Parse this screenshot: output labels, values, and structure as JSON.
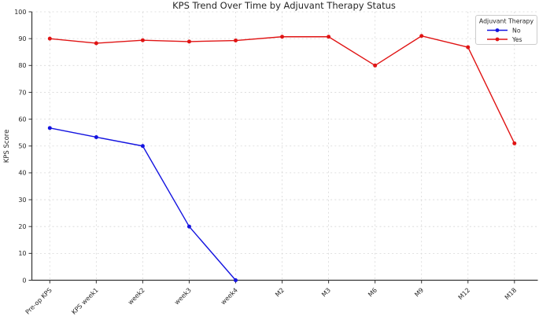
{
  "chart_data": {
    "type": "line",
    "title": "KPS Trend Over Time by Adjuvant Therapy Status",
    "xlabel": "",
    "ylabel": "KPS Score",
    "categories": [
      "Pre-op KPS",
      "KPS week1",
      "week2",
      "week3",
      "week4",
      "M2",
      "M3",
      "M6",
      "M9",
      "M12",
      "M18"
    ],
    "series": [
      {
        "name": "No",
        "color": "#1414e0",
        "values": [
          56.7,
          53.3,
          50,
          20,
          0,
          null,
          null,
          null,
          null,
          null,
          null
        ]
      },
      {
        "name": "Yes",
        "color": "#e01414",
        "values": [
          90,
          88.3,
          89.4,
          88.9,
          89.3,
          90.7,
          90.7,
          80,
          91,
          86.8,
          51
        ]
      }
    ],
    "legend": {
      "title": "Adjuvant Therapy",
      "position": "upper right"
    },
    "ylim": [
      0,
      100
    ],
    "yticks": [
      0,
      10,
      20,
      30,
      40,
      50,
      60,
      70,
      80,
      90,
      100
    ],
    "grid": "dashed light-gray, horizontal and vertical",
    "colors": {
      "text": "#262626",
      "spine": "#333333",
      "gridline": "#d7d7d7",
      "background": "#ffffff"
    }
  }
}
